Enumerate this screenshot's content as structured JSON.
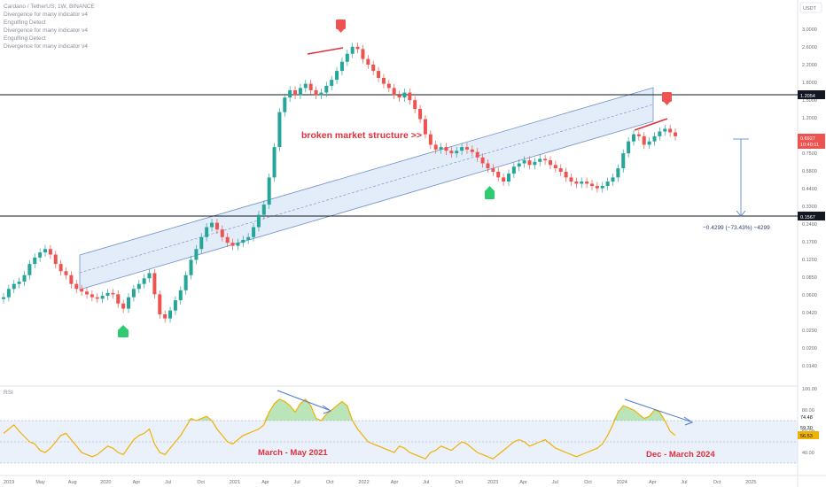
{
  "header": {
    "title": "Cardano / TetherUS, 1W, BINANCE",
    "legend": [
      "Divergence for many indicator v4",
      "Engulfing Detect",
      "Divergence for many indicator v4",
      "Engulfing Detect",
      "Divergence for many indicator v4"
    ],
    "currency": "USDT"
  },
  "chart_data": {
    "type": "candlestick",
    "symbol": "ADA/USDT",
    "interval": "1W",
    "price_axis_ticks": [
      "3.0000",
      "2.6000",
      "2.2000",
      "1.8000",
      "1.5000",
      "1.2000",
      "0.9500",
      "0.7500",
      "0.5800",
      "0.4400",
      "0.3300",
      "0.2400",
      "0.1700",
      "0.1200",
      "0.0850",
      "0.0600",
      "0.0420",
      "0.0290",
      "0.0200",
      "0.0140"
    ],
    "x_axis_ticks": [
      "2019",
      "May",
      "Aug",
      "2020",
      "Apr",
      "Jul",
      "Oct",
      "2021",
      "Apr",
      "Jul",
      "Oct",
      "2022",
      "Apr",
      "Jul",
      "Oct",
      "2023",
      "Apr",
      "Jul",
      "Oct",
      "2024",
      "Apr",
      "Jul",
      "Oct",
      "2025"
    ],
    "close_series": [
      0.04,
      0.046,
      0.05,
      0.052,
      0.058,
      0.07,
      0.078,
      0.085,
      0.09,
      0.082,
      0.07,
      0.062,
      0.058,
      0.05,
      0.046,
      0.044,
      0.042,
      0.04,
      0.039,
      0.041,
      0.043,
      0.042,
      0.036,
      0.033,
      0.04,
      0.046,
      0.05,
      0.055,
      0.06,
      0.042,
      0.03,
      0.028,
      0.032,
      0.038,
      0.045,
      0.058,
      0.075,
      0.09,
      0.11,
      0.13,
      0.14,
      0.125,
      0.11,
      0.1,
      0.095,
      0.1,
      0.105,
      0.11,
      0.13,
      0.16,
      0.19,
      0.3,
      0.5,
      0.9,
      1.15,
      1.3,
      1.2,
      1.35,
      1.45,
      1.3,
      1.2,
      1.25,
      1.4,
      1.55,
      1.8,
      2.1,
      2.4,
      2.7,
      2.6,
      2.2,
      2.0,
      1.8,
      1.6,
      1.45,
      1.35,
      1.2,
      1.15,
      1.25,
      1.1,
      0.95,
      0.8,
      0.62,
      0.52,
      0.48,
      0.5,
      0.47,
      0.45,
      0.47,
      0.5,
      0.48,
      0.46,
      0.42,
      0.38,
      0.35,
      0.33,
      0.3,
      0.28,
      0.32,
      0.36,
      0.38,
      0.4,
      0.37,
      0.39,
      0.41,
      0.4,
      0.37,
      0.35,
      0.33,
      0.3,
      0.28,
      0.27,
      0.28,
      0.27,
      0.26,
      0.25,
      0.26,
      0.28,
      0.3,
      0.35,
      0.45,
      0.55,
      0.62,
      0.6,
      0.52,
      0.55,
      0.6,
      0.65,
      0.68,
      0.64,
      0.6
    ],
    "horizontal_levels": [
      {
        "label": "1.2054",
        "value": 1.2054
      },
      {
        "label": "0.1567",
        "value": 0.1567
      }
    ],
    "current_price_label": "0.6927",
    "countdown_label": "10:40:11",
    "annotations": {
      "structure": "broken market structure >>",
      "measure": "−0.4299 (−73.43%) −4299"
    },
    "rsi": {
      "label": "RSI",
      "ticks": [
        "100.00",
        "80.00",
        "60.00",
        "40.00"
      ],
      "values_shown": [
        "74.48",
        "59.30",
        "56.53"
      ],
      "periods": [
        "March - May 2021",
        "Dec - March 2024"
      ],
      "series": [
        58,
        62,
        66,
        60,
        55,
        50,
        48,
        42,
        40,
        44,
        50,
        56,
        58,
        52,
        46,
        40,
        38,
        36,
        38,
        42,
        46,
        44,
        40,
        38,
        45,
        52,
        56,
        58,
        62,
        48,
        40,
        38,
        44,
        50,
        56,
        64,
        72,
        70,
        72,
        74,
        70,
        62,
        56,
        50,
        48,
        52,
        56,
        58,
        60,
        62,
        66,
        78,
        86,
        90,
        88,
        84,
        78,
        86,
        90,
        84,
        72,
        70,
        76,
        80,
        84,
        88,
        84,
        70,
        62,
        56,
        50,
        48,
        46,
        44,
        42,
        40,
        46,
        44,
        40,
        38,
        36,
        34,
        40,
        42,
        46,
        44,
        42,
        46,
        50,
        48,
        44,
        40,
        38,
        36,
        34,
        38,
        42,
        46,
        50,
        52,
        50,
        46,
        48,
        50,
        52,
        48,
        44,
        42,
        40,
        38,
        36,
        38,
        40,
        42,
        44,
        48,
        56,
        66,
        78,
        84,
        82,
        80,
        76,
        72,
        74,
        80,
        78,
        70,
        60,
        56
      ]
    }
  }
}
